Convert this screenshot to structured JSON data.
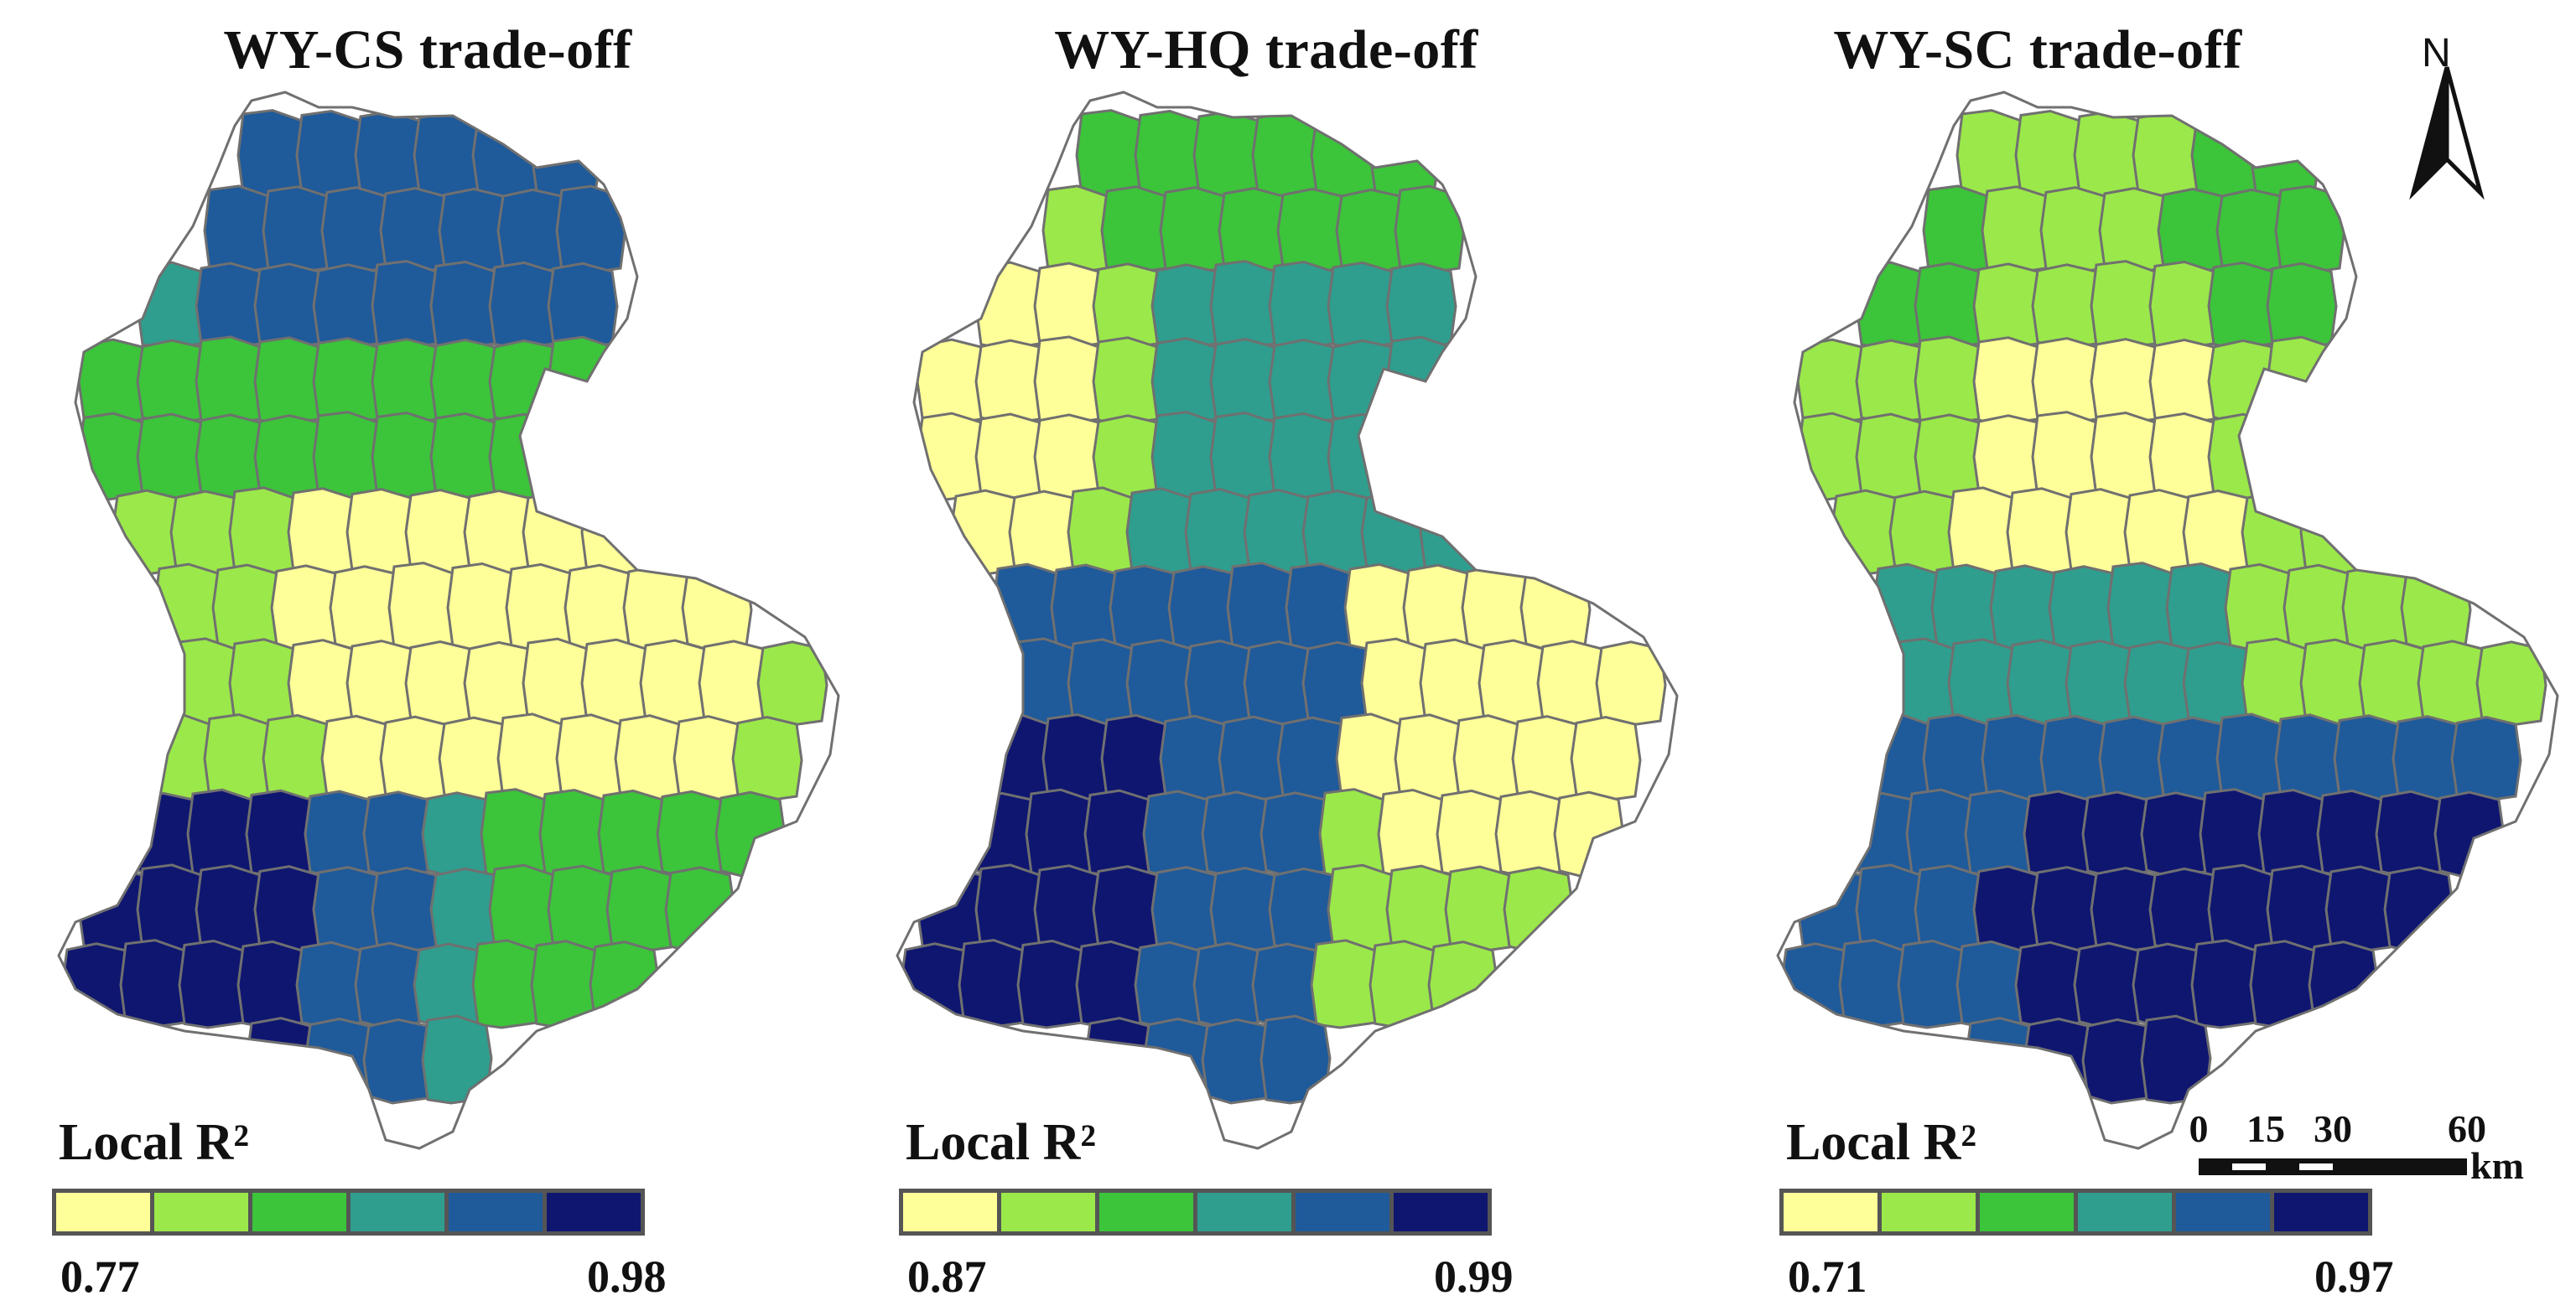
{
  "palette": [
    "#ffff99",
    "#9be84a",
    "#3cc43a",
    "#2f9e8e",
    "#1f5a9a",
    "#0f1670"
  ],
  "border_color": "#707070",
  "panels": [
    {
      "title": "WY-CS trade-off",
      "legend_title": "Local R²",
      "legend_min": "0.77",
      "legend_max": "0.98"
    },
    {
      "title": "WY-HQ trade-off",
      "legend_title": "Local R²",
      "legend_min": "0.87",
      "legend_max": "0.99"
    },
    {
      "title": "WY-SC trade-off",
      "legend_title": "Local R²",
      "legend_min": "0.71",
      "legend_max": "0.97"
    }
  ],
  "north_arrow": {
    "label": "N"
  },
  "scale_bar": {
    "ticks": [
      "0",
      "15",
      "30",
      "60"
    ],
    "unit": "km"
  }
}
